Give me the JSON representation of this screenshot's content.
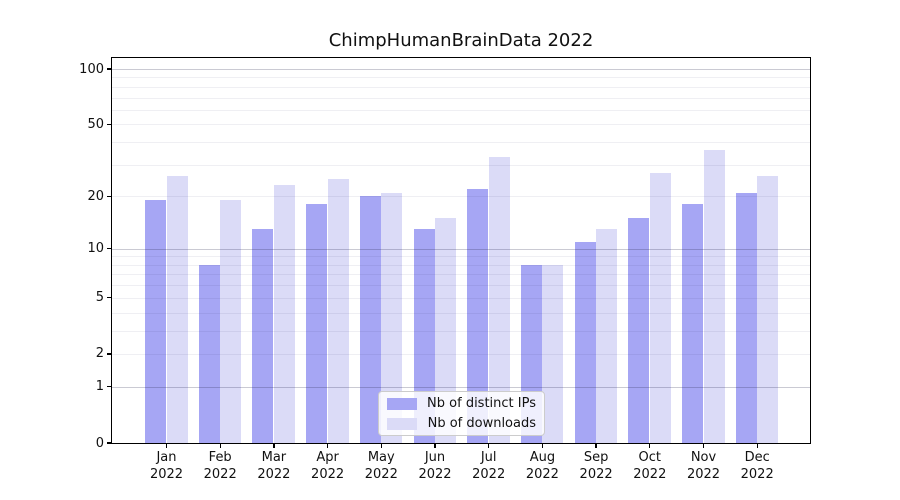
{
  "title": "ChimpHumanBrainData 2022",
  "chart_data": {
    "type": "bar",
    "title": "ChimpHumanBrainData 2022",
    "y_scale": "log1p",
    "ylim": [
      0,
      100
    ],
    "yticks": [
      0,
      1,
      2,
      5,
      10,
      20,
      50,
      100
    ],
    "major_gridlines": [
      1,
      10,
      100
    ],
    "minor_gridlines": [
      2,
      3,
      4,
      5,
      6,
      7,
      8,
      9,
      20,
      30,
      40,
      50,
      60,
      70,
      80,
      90
    ],
    "grid": true,
    "categories": [
      "Jan",
      "Feb",
      "Mar",
      "Apr",
      "May",
      "Jun",
      "Jul",
      "Aug",
      "Sep",
      "Oct",
      "Nov",
      "Dec"
    ],
    "category_year": "2022",
    "series": [
      {
        "name": "Nb of distinct IPs",
        "color": "#a6a6f4",
        "values": [
          19,
          8,
          13,
          18,
          20,
          13,
          22,
          8,
          11,
          15,
          18,
          21
        ]
      },
      {
        "name": "Nb of downloads",
        "color": "#dbdbf7",
        "values": [
          26,
          19,
          23,
          25,
          21,
          15,
          33,
          8,
          13,
          27,
          36,
          26
        ]
      }
    ],
    "legend_position": "lower center",
    "grid_color_major": "#c6c6c6",
    "grid_color_minor": "#ececec"
  }
}
